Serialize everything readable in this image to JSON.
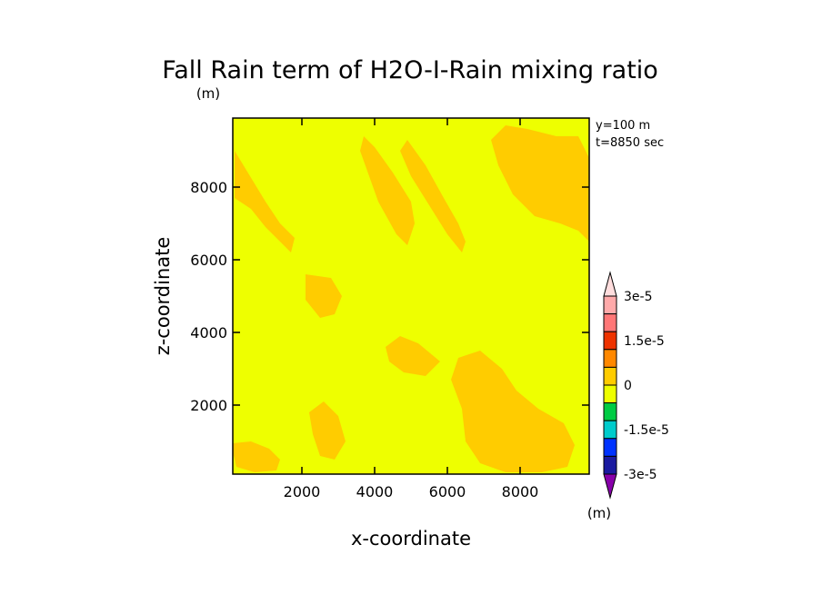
{
  "chart_data": {
    "type": "heatmap",
    "title": "Fall Rain term of H2O-I-Rain mixing ratio",
    "title_unit": "(m)",
    "xlabel": "x-coordinate",
    "ylabel": "z-coordinate",
    "xlim": [
      100,
      9900
    ],
    "ylim": [
      100,
      9900
    ],
    "xticks": [
      2000,
      4000,
      6000,
      8000
    ],
    "yticks": [
      2000,
      4000,
      6000,
      8000
    ],
    "xtick_labels": [
      "2000",
      "4000",
      "6000",
      "8000"
    ],
    "ytick_labels": [
      "2000",
      "4000",
      "6000",
      "8000"
    ],
    "info": [
      "y=100 m",
      "t=8850 sec"
    ],
    "background_color": "#eeff00",
    "colorbar": {
      "unit": "(m)",
      "levels": [
        -3e-05,
        -2.25e-05,
        -1.5e-05,
        -7.5e-06,
        0,
        7.5e-06,
        1.5e-05,
        2.25e-05,
        3e-05
      ],
      "colors": [
        "#8800aa",
        "#1a1aa0",
        "#0033ff",
        "#00cccc",
        "#00cc44",
        "#eeff00",
        "#ffcc00",
        "#ff8800",
        "#ee3300",
        "#ff7777",
        "#ffaaaa",
        "#ffdddd"
      ],
      "tick_labels": [
        "3e-5",
        "1.5e-5",
        "0",
        "-1.5e-5",
        "-3e-5"
      ],
      "tick_values": [
        3e-05,
        1.5e-05,
        0,
        -1.5e-05,
        -3e-05
      ]
    },
    "regions": [
      {
        "level": "0 to 7.5e-6",
        "color": "#ffcc00",
        "outline": [
          [
            150,
            7700
          ],
          [
            150,
            9000
          ],
          [
            1000,
            7600
          ],
          [
            1400,
            7000
          ],
          [
            1800,
            6600
          ],
          [
            1700,
            6200
          ],
          [
            1000,
            6900
          ],
          [
            600,
            7400
          ]
        ]
      },
      {
        "level": "0 to 7.5e-6",
        "color": "#ffcc00",
        "outline": [
          [
            3600,
            9000
          ],
          [
            3700,
            9400
          ],
          [
            4000,
            9100
          ],
          [
            4500,
            8400
          ],
          [
            5000,
            7600
          ],
          [
            5100,
            7000
          ],
          [
            4900,
            6400
          ],
          [
            4600,
            6700
          ],
          [
            4100,
            7600
          ]
        ]
      },
      {
        "level": "0 to 7.5e-6",
        "color": "#ffcc00",
        "outline": [
          [
            4700,
            9000
          ],
          [
            4900,
            9300
          ],
          [
            5400,
            8600
          ],
          [
            5900,
            7700
          ],
          [
            6300,
            7000
          ],
          [
            6500,
            6500
          ],
          [
            6400,
            6200
          ],
          [
            6000,
            6700
          ],
          [
            5500,
            7500
          ],
          [
            5000,
            8300
          ]
        ]
      },
      {
        "level": "0 to 7.5e-6",
        "color": "#ffcc00",
        "outline": [
          [
            7200,
            9300
          ],
          [
            7600,
            9700
          ],
          [
            8200,
            9600
          ],
          [
            9000,
            9400
          ],
          [
            9600,
            9400
          ],
          [
            9900,
            8800
          ],
          [
            9900,
            6500
          ],
          [
            9600,
            6800
          ],
          [
            9100,
            7000
          ],
          [
            8400,
            7200
          ],
          [
            7800,
            7800
          ],
          [
            7400,
            8600
          ]
        ]
      },
      {
        "level": "0 to 7.5e-6",
        "color": "#ffcc00",
        "outline": [
          [
            2100,
            5600
          ],
          [
            2800,
            5500
          ],
          [
            3100,
            5000
          ],
          [
            2900,
            4500
          ],
          [
            2500,
            4400
          ],
          [
            2100,
            4900
          ]
        ]
      },
      {
        "level": "0 to 7.5e-6",
        "color": "#ffcc00",
        "outline": [
          [
            4300,
            3600
          ],
          [
            4700,
            3900
          ],
          [
            5200,
            3700
          ],
          [
            5800,
            3200
          ],
          [
            5400,
            2800
          ],
          [
            4800,
            2900
          ],
          [
            4400,
            3200
          ]
        ]
      },
      {
        "level": "0 to 7.5e-6",
        "color": "#ffcc00",
        "outline": [
          [
            6300,
            3300
          ],
          [
            6900,
            3500
          ],
          [
            7500,
            3000
          ],
          [
            7900,
            2400
          ],
          [
            8500,
            1900
          ],
          [
            9200,
            1500
          ],
          [
            9500,
            900
          ],
          [
            9300,
            300
          ],
          [
            8600,
            150
          ],
          [
            7600,
            150
          ],
          [
            6900,
            400
          ],
          [
            6500,
            1000
          ],
          [
            6400,
            1900
          ],
          [
            6100,
            2700
          ]
        ]
      },
      {
        "level": "0 to 7.5e-6",
        "color": "#ffcc00",
        "outline": [
          [
            100,
            700
          ],
          [
            100,
            950
          ],
          [
            600,
            1000
          ],
          [
            1100,
            800
          ],
          [
            1400,
            500
          ],
          [
            1300,
            200
          ],
          [
            700,
            150
          ],
          [
            200,
            300
          ]
        ]
      },
      {
        "level": "0 to 7.5e-6",
        "color": "#ffcc00",
        "outline": [
          [
            2200,
            1800
          ],
          [
            2600,
            2100
          ],
          [
            3000,
            1700
          ],
          [
            3200,
            1000
          ],
          [
            2900,
            500
          ],
          [
            2500,
            600
          ],
          [
            2300,
            1200
          ]
        ]
      }
    ]
  }
}
